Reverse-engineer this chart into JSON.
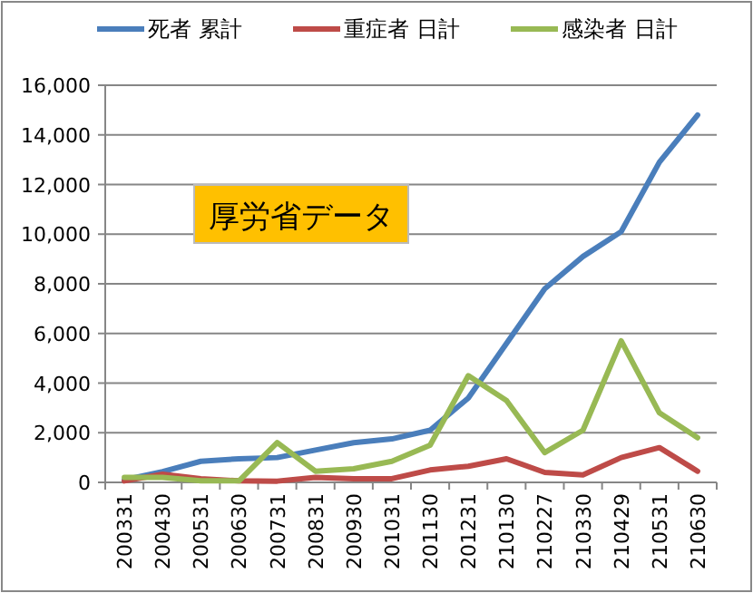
{
  "chart_data": {
    "type": "line",
    "categories": [
      "200331",
      "200430",
      "200531",
      "200630",
      "200731",
      "200831",
      "200930",
      "201031",
      "201130",
      "201231",
      "210130",
      "210227",
      "210330",
      "210429",
      "210531",
      "210630"
    ],
    "series": [
      {
        "name": "死者 累計",
        "color": "#4a7ebb",
        "values": [
          100,
          430,
          850,
          950,
          1000,
          1300,
          1600,
          1750,
          2100,
          3400,
          5600,
          7800,
          9100,
          10100,
          12900,
          14800
        ]
      },
      {
        "name": "重症者 日計",
        "color": "#be4b48",
        "values": [
          60,
          330,
          150,
          60,
          50,
          200,
          150,
          150,
          500,
          650,
          950,
          400,
          300,
          1000,
          1400,
          450
        ]
      },
      {
        "name": "感染者 日計",
        "color": "#98b954",
        "values": [
          200,
          200,
          60,
          60,
          1600,
          450,
          550,
          850,
          1500,
          4300,
          3300,
          1200,
          2100,
          5700,
          2800,
          1800
        ]
      }
    ],
    "ylim": [
      0,
      16000
    ],
    "yticks": [
      {
        "value": 0,
        "label": "0"
      },
      {
        "value": 2000,
        "label": "2,000"
      },
      {
        "value": 4000,
        "label": "4,000"
      },
      {
        "value": 6000,
        "label": "6,000"
      },
      {
        "value": 8000,
        "label": "8,000"
      },
      {
        "value": 10000,
        "label": "10,000"
      },
      {
        "value": 12000,
        "label": "12,000"
      },
      {
        "value": 14000,
        "label": "14,000"
      },
      {
        "value": 16000,
        "label": "16,000"
      }
    ],
    "grid": "y",
    "legend": "top",
    "marker": "none",
    "line_style": "solid",
    "annotations": [
      "厚労省データ"
    ]
  }
}
